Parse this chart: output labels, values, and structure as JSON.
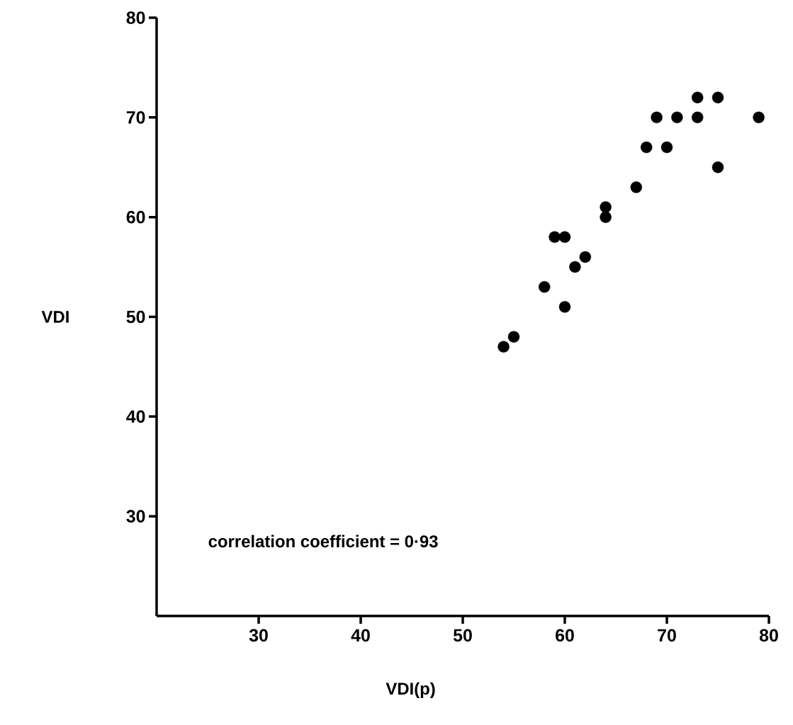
{
  "chart_data": {
    "type": "scatter",
    "xlabel": "VDI(p)",
    "ylabel": "VDI",
    "x": [
      73,
      75,
      69,
      71,
      73,
      79,
      68,
      70,
      75,
      67,
      64,
      64,
      59,
      60,
      62,
      61,
      58,
      60,
      55,
      54
    ],
    "values": [
      72,
      72,
      70,
      70,
      70,
      70,
      67,
      67,
      65,
      63,
      61,
      60,
      58,
      58,
      56,
      55,
      53,
      51,
      48,
      47
    ],
    "color": "#000000",
    "xlim": [
      20,
      80
    ],
    "ylim": [
      20,
      80
    ],
    "xticks": [
      30,
      40,
      50,
      60,
      70,
      80
    ],
    "yticks": [
      30,
      40,
      50,
      60,
      70,
      80
    ],
    "annotations": [
      "correlation coefficient = 0·93"
    ]
  }
}
